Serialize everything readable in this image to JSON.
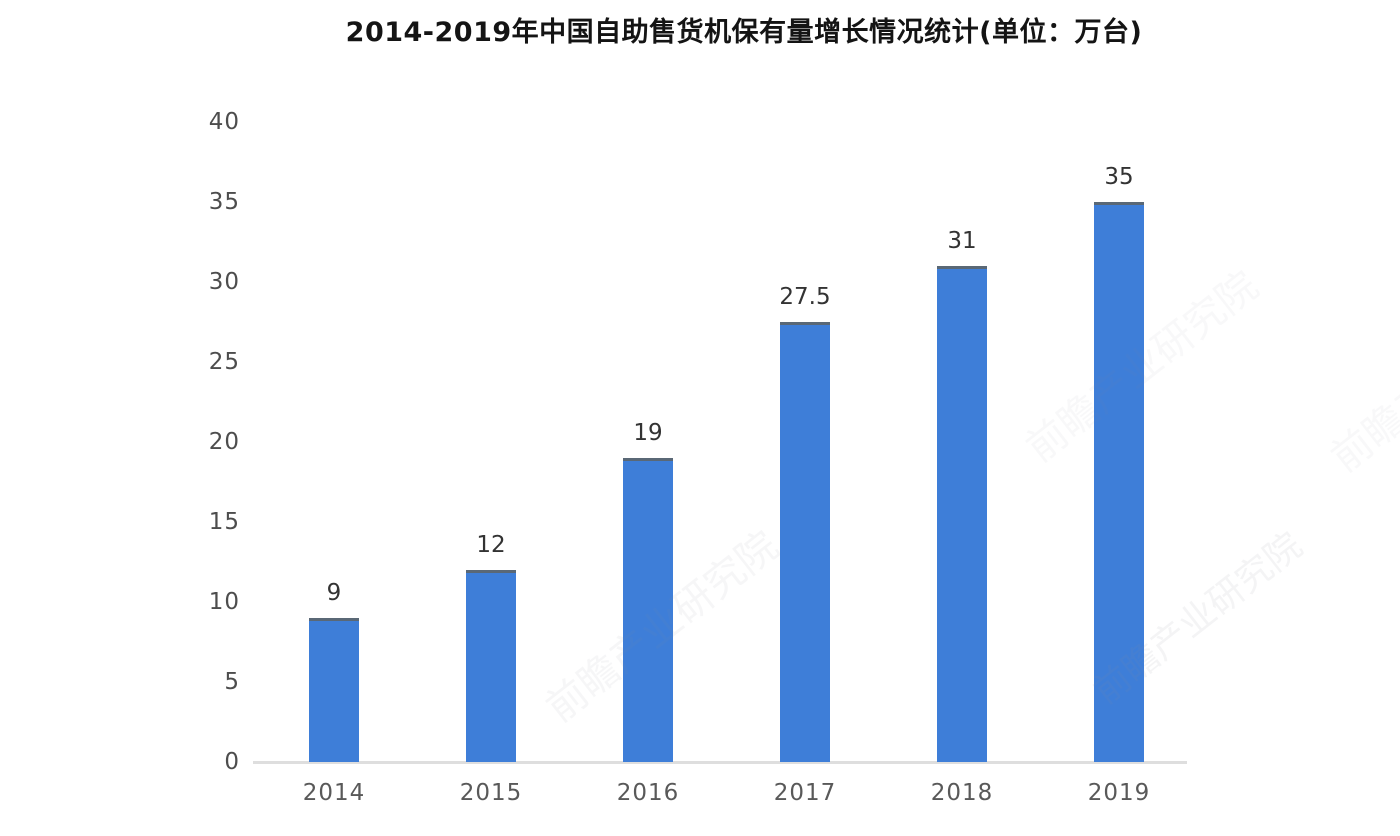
{
  "chart_data": {
    "type": "bar",
    "title": "2014-2019年中国自助售货机保有量增长情况统计(单位：万台)",
    "categories": [
      "2014",
      "2015",
      "2016",
      "2017",
      "2018",
      "2019"
    ],
    "values": [
      9,
      12,
      19,
      27.5,
      31,
      35
    ],
    "value_labels": [
      "9",
      "12",
      "19",
      "27.5",
      "31",
      "35"
    ],
    "xlabel": "",
    "ylabel": "",
    "ylim": [
      0,
      40
    ],
    "yticks": [
      0,
      5,
      10,
      15,
      20,
      25,
      30,
      35,
      40
    ],
    "grid": false,
    "legend_position": "none",
    "colors": {
      "bar": "#3e7ed8",
      "bar_top_edge": "#5a6876",
      "axis_line": "#dedede",
      "y_tick_label": "#4d4d4d",
      "x_tick_label": "#595959",
      "value_label": "#333333",
      "title": "#141414",
      "background": "#ffffff"
    }
  },
  "watermark": {
    "text": "前瞻产业研究院",
    "color": "#8a909a"
  }
}
